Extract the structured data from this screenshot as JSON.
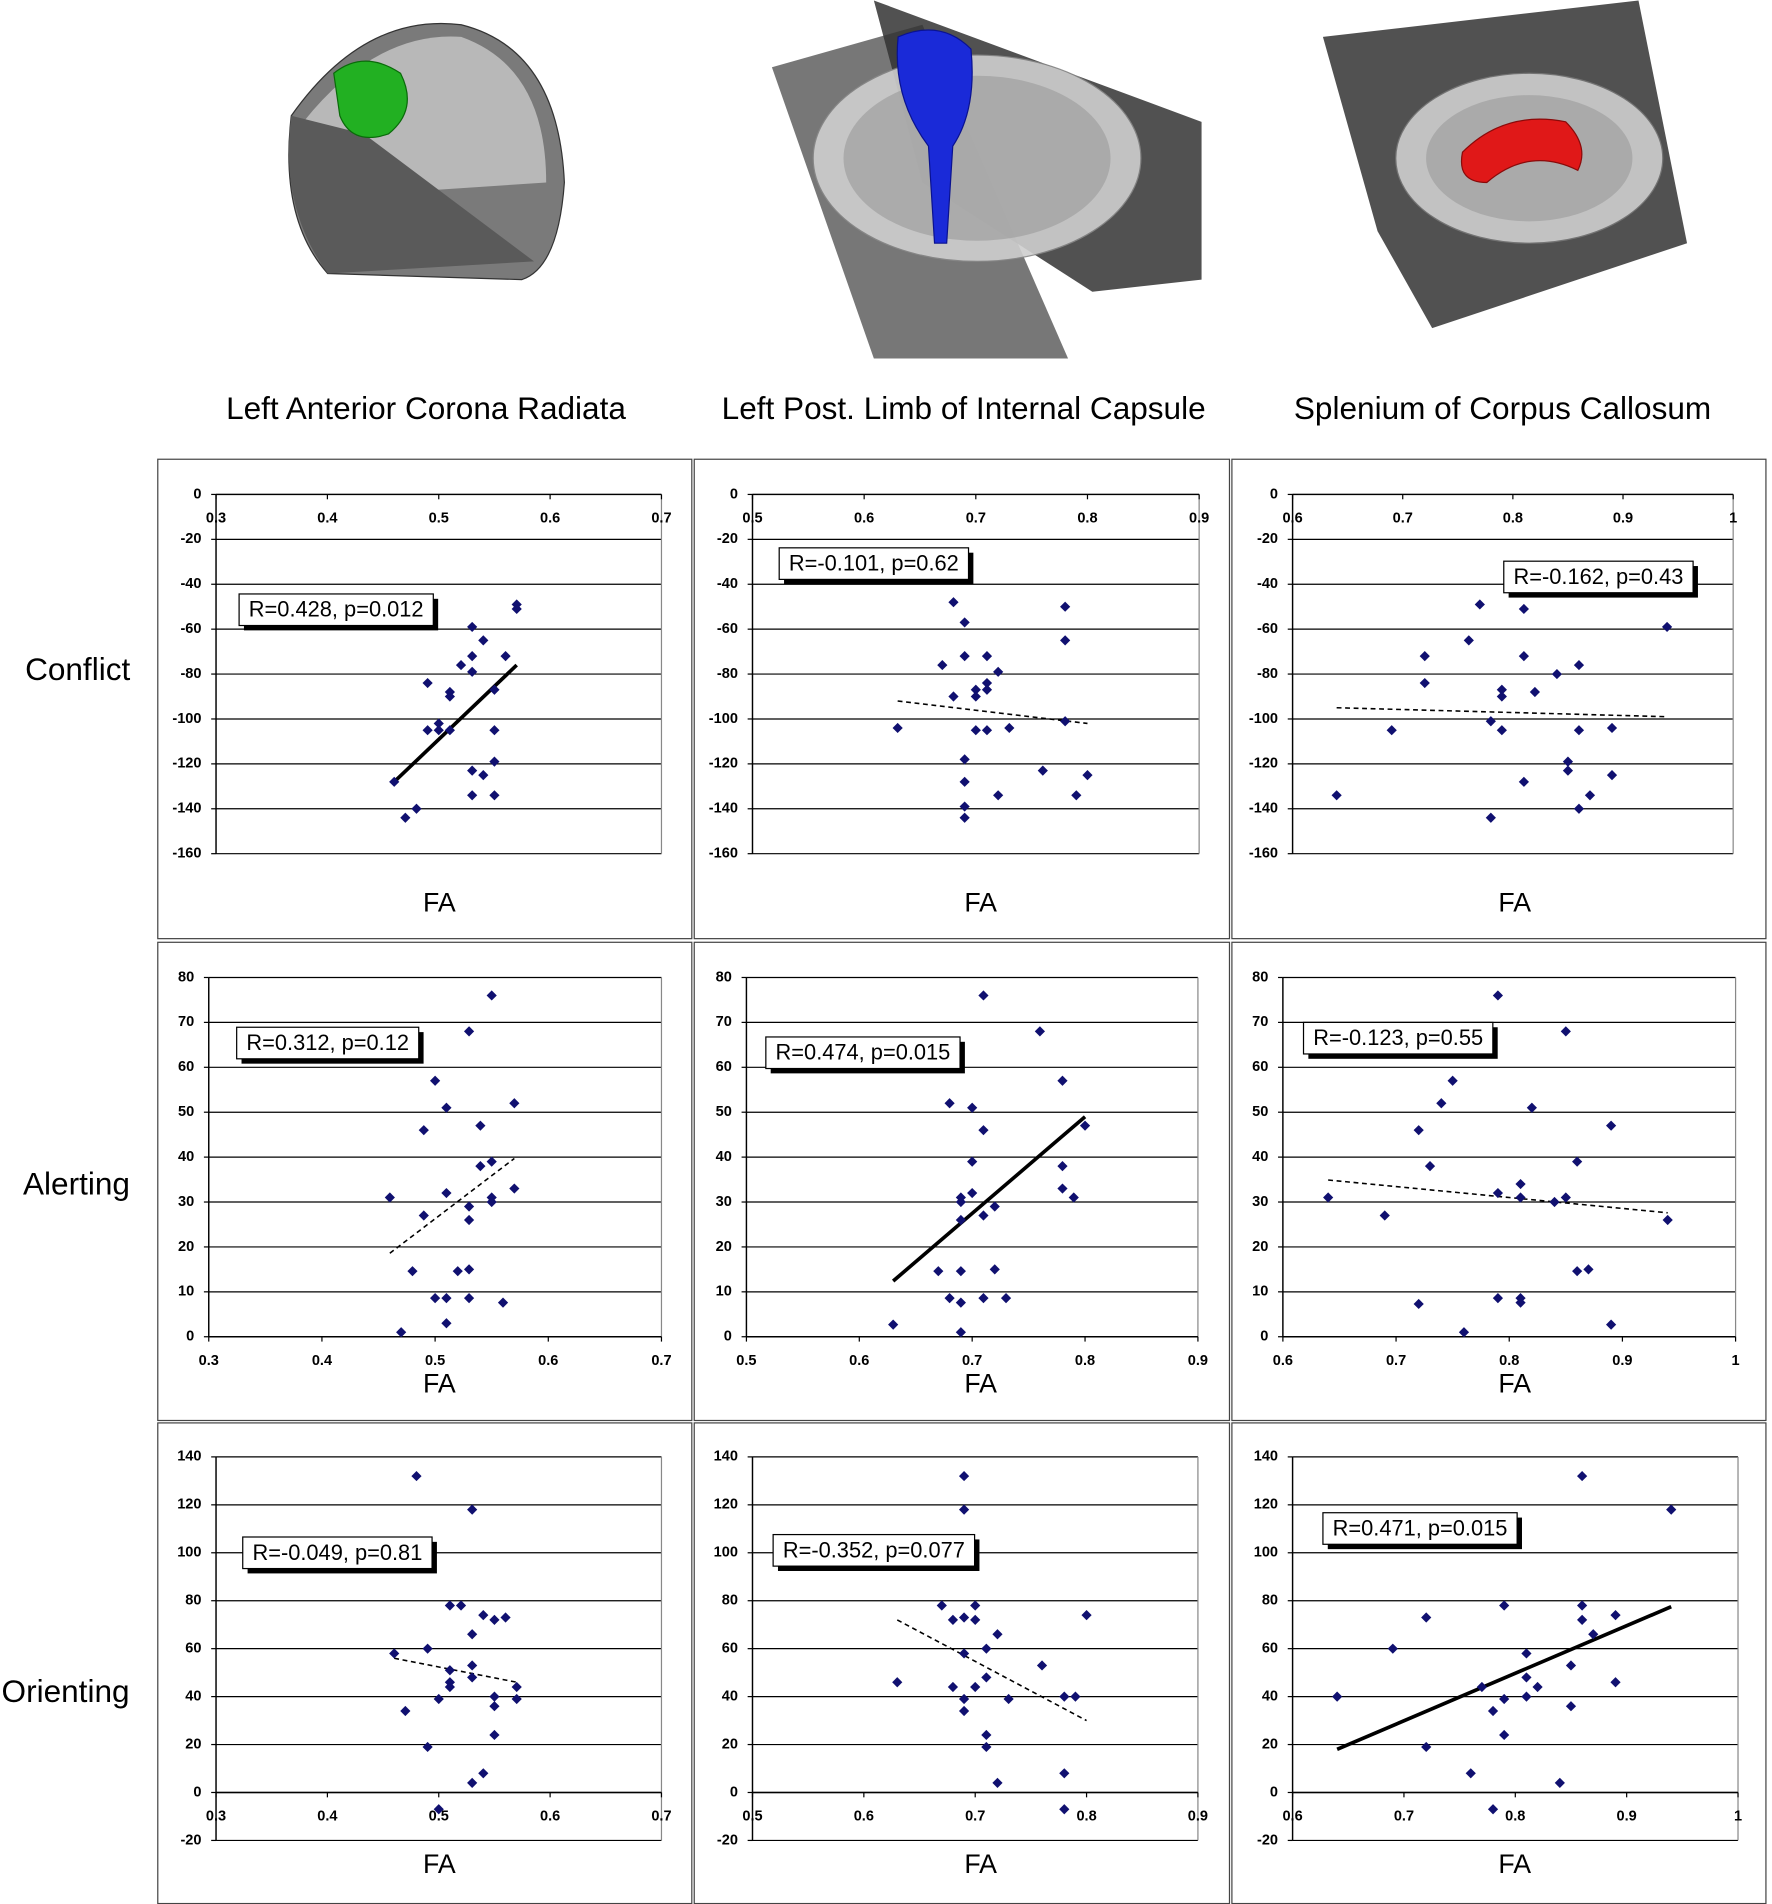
{
  "column_titles": [
    "Left Anterior Corona Radiata",
    "Left Post. Limb of Internal Capsule",
    "Splenium of Corpus Callosum"
  ],
  "row_labels": [
    "Conflict",
    "Alerting",
    "Orienting"
  ],
  "chart_data": [
    {
      "type": "scatter",
      "xlabel": "FA",
      "annotation": "R=0.428, p=0.012",
      "color": "#101070",
      "grid": true,
      "xlim": [
        0.3,
        0.7
      ],
      "xticks": [
        0.3,
        0.4,
        0.5,
        0.6,
        0.7
      ],
      "ylim": [
        -160,
        0
      ],
      "yticks": [
        0,
        -20,
        -40,
        -60,
        -80,
        -100,
        -120,
        -140,
        -160
      ],
      "x": [
        0.47,
        0.46,
        0.48,
        0.49,
        0.49,
        0.5,
        0.5,
        0.51,
        0.51,
        0.51,
        0.52,
        0.53,
        0.53,
        0.53,
        0.53,
        0.53,
        0.54,
        0.54,
        0.55,
        0.55,
        0.55,
        0.55,
        0.56,
        0.57,
        0.57
      ],
      "values": [
        -144,
        -128,
        -140,
        -84,
        -105,
        -102,
        -105,
        -105,
        -88,
        -90,
        -76,
        -59,
        -72,
        -79,
        -123,
        -134,
        -65,
        -125,
        -87,
        -105,
        -119,
        -134,
        -72,
        -49,
        -51
      ],
      "trendline": {
        "x": [
          0.46,
          0.57
        ],
        "y": [
          -128,
          -76
        ],
        "style": "solid"
      }
    },
    {
      "type": "scatter",
      "xlabel": "FA",
      "annotation": "R=-0.101, p=0.62",
      "color": "#101070",
      "grid": true,
      "xlim": [
        0.5,
        0.9
      ],
      "xticks": [
        0.5,
        0.6,
        0.7,
        0.8,
        0.9
      ],
      "ylim": [
        -160,
        0
      ],
      "yticks": [
        0,
        -20,
        -40,
        -60,
        -80,
        -100,
        -120,
        -140,
        -160
      ],
      "x": [
        0.63,
        0.67,
        0.68,
        0.68,
        0.69,
        0.69,
        0.69,
        0.69,
        0.69,
        0.69,
        0.7,
        0.7,
        0.7,
        0.71,
        0.71,
        0.71,
        0.71,
        0.72,
        0.72,
        0.73,
        0.76,
        0.78,
        0.78,
        0.78,
        0.79,
        0.8
      ],
      "values": [
        -104,
        -76,
        -48,
        -90,
        -57,
        -72,
        -118,
        -128,
        -139,
        -144,
        -87,
        -90,
        -105,
        -72,
        -84,
        -87,
        -105,
        -79,
        -134,
        -104,
        -123,
        -50,
        -65,
        -101,
        -134,
        -125
      ],
      "trendline": {
        "x": [
          0.63,
          0.8
        ],
        "y": [
          -92,
          -102
        ],
        "style": "dashed"
      }
    },
    {
      "type": "scatter",
      "xlabel": "FA",
      "annotation": "R=-0.162, p=0.43",
      "color": "#101070",
      "grid": true,
      "xlim": [
        0.6,
        1
      ],
      "xticks": [
        0.6,
        0.7,
        0.8,
        0.9,
        1
      ],
      "ylim": [
        -160,
        0
      ],
      "yticks": [
        0,
        -20,
        -40,
        -60,
        -80,
        -100,
        -120,
        -140,
        -160
      ],
      "x": [
        0.64,
        0.69,
        0.72,
        0.72,
        0.76,
        0.77,
        0.78,
        0.78,
        0.79,
        0.79,
        0.79,
        0.81,
        0.81,
        0.81,
        0.82,
        0.84,
        0.85,
        0.85,
        0.86,
        0.86,
        0.86,
        0.87,
        0.89,
        0.89,
        0.94
      ],
      "values": [
        -134,
        -105,
        -72,
        -84,
        -65,
        -49,
        -101,
        -144,
        -87,
        -90,
        -105,
        -51,
        -72,
        -128,
        -88,
        -80,
        -119,
        -123,
        -76,
        -105,
        -140,
        -134,
        -104,
        -125,
        -59
      ],
      "trendline": {
        "x": [
          0.64,
          0.94
        ],
        "y": [
          -95,
          -99
        ],
        "style": "dashed"
      }
    },
    {
      "type": "scatter",
      "xlabel": "FA",
      "annotation": "R=0.312, p=0.12",
      "color": "#101070",
      "grid": true,
      "xlim": [
        0.3,
        0.7
      ],
      "xticks": [
        0.3,
        0.4,
        0.5,
        0.6,
        0.7
      ],
      "ylim": [
        0,
        80
      ],
      "yticks": [
        0,
        10,
        20,
        30,
        40,
        50,
        60,
        70,
        80
      ],
      "x": [
        0.46,
        0.47,
        0.48,
        0.49,
        0.49,
        0.5,
        0.5,
        0.51,
        0.51,
        0.51,
        0.51,
        0.52,
        0.53,
        0.53,
        0.53,
        0.53,
        0.53,
        0.54,
        0.54,
        0.55,
        0.55,
        0.55,
        0.55,
        0.56,
        0.57,
        0.57
      ],
      "values": [
        31,
        1,
        14.6,
        46,
        27,
        57,
        8.6,
        51,
        32,
        8.6,
        3,
        14.6,
        68,
        29,
        26,
        15,
        8.6,
        47,
        38,
        76,
        39,
        31,
        30,
        7.6,
        52,
        33
      ],
      "trendline": {
        "x": [
          0.46,
          0.57
        ],
        "y": [
          18.6,
          39.7
        ],
        "style": "dashed"
      }
    },
    {
      "type": "scatter",
      "xlabel": "FA",
      "annotation": "R=0.474, p=0.015",
      "color": "#101070",
      "grid": true,
      "xlim": [
        0.5,
        0.9
      ],
      "xticks": [
        0.5,
        0.6,
        0.7,
        0.8,
        0.9
      ],
      "ylim": [
        0,
        80
      ],
      "yticks": [
        0,
        10,
        20,
        30,
        40,
        50,
        60,
        70,
        80
      ],
      "x": [
        0.63,
        0.67,
        0.68,
        0.68,
        0.69,
        0.69,
        0.69,
        0.69,
        0.69,
        0.69,
        0.7,
        0.7,
        0.7,
        0.71,
        0.71,
        0.71,
        0.71,
        0.72,
        0.72,
        0.73,
        0.76,
        0.78,
        0.78,
        0.78,
        0.79,
        0.8
      ],
      "values": [
        2.7,
        14.6,
        52,
        8.6,
        31,
        30,
        26,
        14.6,
        7.6,
        1,
        51,
        39,
        32,
        76,
        46,
        27,
        8.6,
        29,
        15,
        8.6,
        68,
        57,
        38,
        33,
        31,
        47
      ],
      "trendline": {
        "x": [
          0.63,
          0.8
        ],
        "y": [
          12.4,
          49
        ],
        "style": "solid"
      }
    },
    {
      "type": "scatter",
      "xlabel": "FA",
      "annotation": "R=-0.123, p=0.55",
      "color": "#101070",
      "grid": true,
      "xlim": [
        0.6,
        1
      ],
      "xticks": [
        0.6,
        0.7,
        0.8,
        0.9,
        1
      ],
      "ylim": [
        0,
        80
      ],
      "yticks": [
        0,
        10,
        20,
        30,
        40,
        50,
        60,
        70,
        80
      ],
      "x": [
        0.64,
        0.69,
        0.72,
        0.72,
        0.73,
        0.74,
        0.75,
        0.76,
        0.79,
        0.79,
        0.79,
        0.81,
        0.81,
        0.81,
        0.81,
        0.82,
        0.84,
        0.85,
        0.85,
        0.86,
        0.86,
        0.87,
        0.89,
        0.89,
        0.94
      ],
      "values": [
        31,
        27,
        46,
        7.3,
        38,
        52,
        57,
        1,
        76,
        32,
        8.6,
        34,
        31,
        8.6,
        7.6,
        51,
        30,
        68,
        31,
        39,
        14.6,
        15,
        47,
        2.7,
        26
      ],
      "trendline": {
        "x": [
          0.64,
          0.94
        ],
        "y": [
          34.9,
          27.6
        ],
        "style": "dashed"
      }
    },
    {
      "type": "scatter",
      "xlabel": "FA",
      "annotation": "R=-0.049, p=0.81",
      "color": "#101070",
      "grid": true,
      "xlim": [
        0.3,
        0.7
      ],
      "xticks": [
        0.3,
        0.4,
        0.5,
        0.6,
        0.7
      ],
      "ylim": [
        -20,
        140
      ],
      "yticks": [
        -20,
        0,
        20,
        40,
        60,
        80,
        100,
        120,
        140
      ],
      "x": [
        0.46,
        0.47,
        0.48,
        0.49,
        0.49,
        0.5,
        0.5,
        0.51,
        0.51,
        0.51,
        0.51,
        0.52,
        0.53,
        0.53,
        0.53,
        0.53,
        0.53,
        0.54,
        0.54,
        0.55,
        0.55,
        0.55,
        0.55,
        0.56,
        0.57,
        0.57
      ],
      "values": [
        58,
        34,
        132,
        19,
        60,
        -7,
        39,
        78,
        51,
        46,
        44,
        78,
        118,
        66,
        53,
        48,
        4,
        74,
        8,
        72,
        40,
        36,
        24,
        73,
        44,
        39
      ],
      "trendline": {
        "x": [
          0.46,
          0.57
        ],
        "y": [
          56,
          46
        ],
        "style": "dashed"
      }
    },
    {
      "type": "scatter",
      "xlabel": "FA",
      "annotation": "R=-0.352, p=0.077",
      "color": "#101070",
      "grid": true,
      "xlim": [
        0.5,
        0.9
      ],
      "xticks": [
        0.5,
        0.6,
        0.7,
        0.8,
        0.9
      ],
      "ylim": [
        -20,
        140
      ],
      "yticks": [
        -20,
        0,
        20,
        40,
        60,
        80,
        100,
        120,
        140
      ],
      "x": [
        0.63,
        0.67,
        0.68,
        0.68,
        0.69,
        0.69,
        0.69,
        0.69,
        0.69,
        0.69,
        0.7,
        0.7,
        0.7,
        0.71,
        0.71,
        0.71,
        0.71,
        0.72,
        0.72,
        0.73,
        0.76,
        0.78,
        0.78,
        0.78,
        0.79,
        0.8
      ],
      "values": [
        46,
        78,
        72,
        44,
        132,
        118,
        73,
        58,
        39,
        34,
        78,
        72,
        44,
        60,
        48,
        24,
        19,
        66,
        4,
        39,
        53,
        40,
        8,
        -7,
        40,
        74
      ],
      "trendline": {
        "x": [
          0.63,
          0.8
        ],
        "y": [
          72,
          30
        ],
        "style": "dashed"
      }
    },
    {
      "type": "scatter",
      "xlabel": "FA",
      "annotation": "R=0.471, p=0.015",
      "color": "#101070",
      "grid": true,
      "xlim": [
        0.6,
        1
      ],
      "xticks": [
        0.6,
        0.7,
        0.8,
        0.9,
        1
      ],
      "ylim": [
        -20,
        140
      ],
      "yticks": [
        -20,
        0,
        20,
        40,
        60,
        80,
        100,
        120,
        140
      ],
      "x": [
        0.64,
        0.69,
        0.72,
        0.72,
        0.76,
        0.77,
        0.78,
        0.78,
        0.79,
        0.79,
        0.79,
        0.81,
        0.81,
        0.81,
        0.82,
        0.84,
        0.85,
        0.85,
        0.86,
        0.86,
        0.86,
        0.87,
        0.89,
        0.89,
        0.94
      ],
      "values": [
        40,
        60,
        73,
        19,
        8,
        44,
        34,
        -7,
        78,
        39,
        24,
        58,
        48,
        40,
        44,
        4,
        53,
        36,
        132,
        78,
        72,
        66,
        74,
        46,
        118
      ],
      "trendline": {
        "x": [
          0.64,
          0.94
        ],
        "y": [
          18,
          77.5
        ],
        "style": "solid"
      }
    }
  ]
}
